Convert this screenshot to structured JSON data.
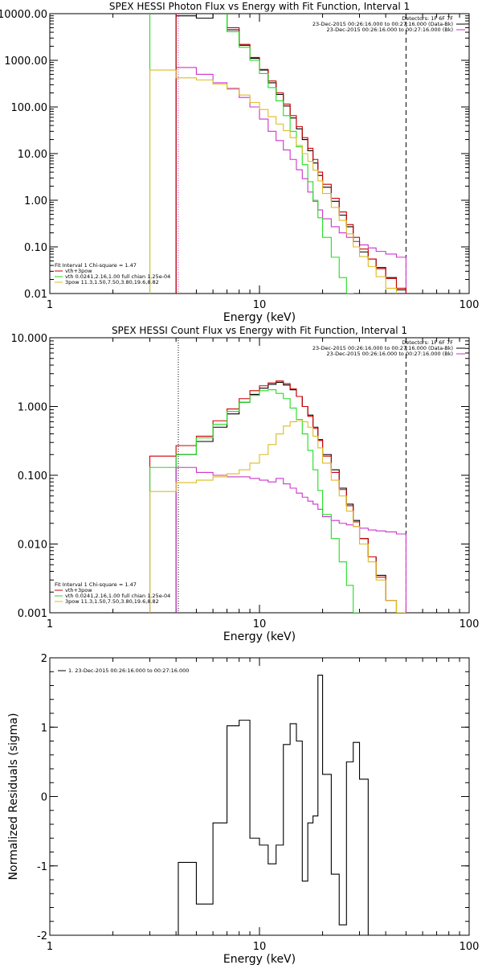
{
  "chart_data": [
    {
      "type": "line",
      "title": "SPEX HESSI Photon Flux vs Energy with Fit Function, Interval 1",
      "xlabel": "Energy (keV)",
      "ylabel": "",
      "xscale": "log",
      "yscale": "log",
      "xlim": [
        1,
        100
      ],
      "ylim": [
        0.01,
        10000
      ],
      "x_tick_labels": [
        "1",
        "10",
        "100"
      ],
      "y_tick_labels": [
        "10000.00",
        "1000.00",
        "100.00",
        "10.00",
        "1.00",
        "0.10",
        "0.01"
      ],
      "y_tick_values": [
        10000,
        1000,
        100,
        10,
        1,
        0.1,
        0.01
      ],
      "top_legend": {
        "lines": [
          "Detectors: 1F 6F 7F",
          "23-Dec-2015 00:26:16.000 to 00:27:16.000 (Data-Bk)",
          "23-Dec-2015 00:26:16.000 to 00:27:16.000 (Bk)"
        ],
        "colors": [
          "#000000",
          "#000000",
          "#cc33cc"
        ]
      },
      "bottom_legend": {
        "lines": [
          "Fit Interval 1   Chi-square = 1.47",
          "vth+3pow",
          "vth 0.0241,2.16,1.00  full chian 1.25e-04",
          "3pow  11.3,1.50,7.50,3.80,19.6,8.82"
        ],
        "colors": [
          "#000000",
          "#cc0000",
          "#22dd22",
          "#ddbb22"
        ]
      },
      "vlines": [
        {
          "x": 4.1,
          "style": "dotted",
          "color": "#cc33cc"
        },
        {
          "x": 50,
          "style": "dashed",
          "color": "#000000"
        }
      ],
      "edges": [
        3,
        4,
        5,
        6,
        7,
        8,
        9,
        10,
        11,
        12,
        13,
        14,
        15,
        16,
        17,
        18,
        19,
        20,
        22,
        24,
        26,
        28,
        30,
        33,
        36,
        40,
        45,
        50
      ],
      "series": [
        {
          "name": "Data-Bk",
          "color": "#000000",
          "start_bin": 1,
          "values": [
            9000,
            8000,
            12000,
            4500,
            2100,
            1100,
            620,
            330,
            185,
            105,
            58,
            34,
            20,
            11.5,
            6.3,
            3.4,
            1.9,
            0.95,
            0.48,
            0.27,
            0.13,
            0.078,
            0.055,
            0.036,
            0.022,
            0.012
          ]
        },
        {
          "name": "Bk",
          "color": "#cc33cc",
          "start_bin": 1,
          "values": [
            700,
            500,
            330,
            250,
            160,
            100,
            55,
            30,
            19,
            12,
            7.5,
            4.5,
            2.9,
            1.5,
            0.95,
            0.62,
            0.4,
            0.27,
            0.2,
            0.16,
            0.13,
            0.11,
            0.095,
            0.08,
            0.07,
            0.06
          ]
        },
        {
          "name": "vth+3pow",
          "color": "#cc0000",
          "start_bin": 1,
          "values": [
            12000,
            12000,
            12000,
            5000,
            2200,
            1150,
            640,
            360,
            200,
            115,
            65,
            38,
            22,
            13,
            7.5,
            4.0,
            2.2,
            1.1,
            0.56,
            0.3,
            0.16,
            0.09,
            0.055,
            0.034,
            0.021,
            0.013
          ]
        },
        {
          "name": "vth",
          "color": "#22dd22",
          "start_bin": 0,
          "values": [
            12000,
            12000,
            12000,
            12000,
            4100,
            1900,
            1000,
            520,
            260,
            135,
            65,
            30,
            14,
            5.8,
            2.5,
            1.0,
            0.42,
            0.16,
            0.06,
            0.022,
            0.01
          ]
        },
        {
          "name": "3pow",
          "color": "#ddbb22",
          "start_bin": 0,
          "values": [
            620,
            420,
            380,
            310,
            240,
            180,
            125,
            88,
            62,
            43,
            31,
            22,
            15,
            10,
            6.8,
            4.4,
            2.6,
            1.4,
            0.7,
            0.37,
            0.19,
            0.1,
            0.062,
            0.038,
            0.023,
            0.013,
            0.008
          ]
        }
      ]
    },
    {
      "type": "line",
      "title": "SPEX HESSI Count Flux vs Energy with Fit Function, Interval 1",
      "xlabel": "Energy (keV)",
      "ylabel": "",
      "xscale": "log",
      "yscale": "log",
      "xlim": [
        1,
        100
      ],
      "ylim": [
        0.001,
        10
      ],
      "x_tick_labels": [
        "1",
        "10",
        "100"
      ],
      "y_tick_labels": [
        "10.000",
        "1.000",
        "0.100",
        "0.010",
        "0.001"
      ],
      "y_tick_values": [
        10,
        1,
        0.1,
        0.01,
        0.001
      ],
      "top_legend": {
        "lines": [
          "Detectors: 1F 6F 7F",
          "23-Dec-2015 00:26:16.000 to 00:27:16.000 (Data-Bk)",
          "23-Dec-2015 00:26:16.000 to 00:27:16.000 (Bk)"
        ],
        "colors": [
          "#000000",
          "#000000",
          "#cc33cc"
        ]
      },
      "bottom_legend": {
        "lines": [
          "Fit Interval 1   Chi-square = 1.47",
          "vth+3pow",
          "vth 0.0241,2.16,1.00  full chian 1.25e-04",
          "3pow  11.3,1.50,7.50,3.80,19.6,8.82"
        ],
        "colors": [
          "#000000",
          "#cc0000",
          "#22dd22",
          "#ddbb22"
        ]
      },
      "vlines": [
        {
          "x": 4.1,
          "style": "dotted",
          "color": "#000000"
        },
        {
          "x": 50,
          "style": "dashed",
          "color": "#000000"
        }
      ],
      "edges": [
        3,
        4,
        5,
        6,
        7,
        8,
        9,
        10,
        11,
        12,
        13,
        14,
        15,
        16,
        17,
        18,
        19,
        20,
        22,
        24,
        26,
        28,
        30,
        33,
        36,
        40,
        45,
        50,
        55
      ],
      "series": [
        {
          "name": "Data-Bk",
          "color": "#000000",
          "start_bin": 1,
          "values": [
            0.2,
            0.31,
            0.5,
            0.78,
            1.15,
            1.5,
            1.85,
            2.1,
            2.25,
            2.05,
            1.75,
            1.4,
            1.0,
            0.75,
            0.5,
            0.33,
            0.2,
            0.12,
            0.065,
            0.038,
            0.022,
            0.012,
            0.0065,
            0.0035,
            0.0015,
            0.001
          ]
        },
        {
          "name": "Bk",
          "color": "#cc33cc",
          "start_bin": 1,
          "values": [
            0.13,
            0.11,
            0.1,
            0.095,
            0.095,
            0.09,
            0.085,
            0.08,
            0.09,
            0.075,
            0.065,
            0.055,
            0.048,
            0.042,
            0.038,
            0.032,
            0.025,
            0.022,
            0.02,
            0.019,
            0.018,
            0.017,
            0.016,
            0.0155,
            0.015,
            0.014
          ]
        },
        {
          "name": "vth+3pow",
          "color": "#cc0000",
          "start_bin": 0,
          "values": [
            0.19,
            0.27,
            0.37,
            0.62,
            0.92,
            1.3,
            1.7,
            2.0,
            2.2,
            2.35,
            2.15,
            1.8,
            1.4,
            1.0,
            0.72,
            0.48,
            0.32,
            0.19,
            0.11,
            0.062,
            0.036,
            0.021,
            0.012,
            0.0065,
            0.0033,
            0.0015,
            0.001
          ]
        },
        {
          "name": "vth",
          "color": "#22dd22",
          "start_bin": 0,
          "values": [
            0.13,
            0.2,
            0.35,
            0.55,
            0.85,
            1.15,
            1.45,
            1.7,
            1.75,
            1.55,
            1.3,
            0.95,
            0.65,
            0.4,
            0.23,
            0.12,
            0.06,
            0.027,
            0.012,
            0.0055,
            0.0025,
            0.001
          ]
        },
        {
          "name": "3pow",
          "color": "#ddbb22",
          "start_bin": 0,
          "values": [
            0.058,
            0.078,
            0.085,
            0.095,
            0.105,
            0.12,
            0.15,
            0.2,
            0.28,
            0.4,
            0.52,
            0.6,
            0.62,
            0.6,
            0.5,
            0.37,
            0.25,
            0.15,
            0.085,
            0.05,
            0.03,
            0.018,
            0.01,
            0.0055,
            0.003,
            0.0015,
            0.001
          ]
        }
      ]
    },
    {
      "type": "line",
      "title": "",
      "xlabel": "Energy (keV)",
      "ylabel": "Normalized Residuals (sigma)",
      "xscale": "log",
      "yscale": "linear",
      "xlim": [
        1,
        100
      ],
      "ylim": [
        -2,
        2
      ],
      "x_tick_labels": [
        "1",
        "10",
        "100"
      ],
      "y_tick_labels": [
        "2",
        "1",
        "0",
        "-1",
        "-2"
      ],
      "y_tick_values": [
        2,
        1,
        0,
        -1,
        -2
      ],
      "legend": "1. 23-Dec-2015 00:26:16.000 to 00:27:16.000",
      "edges": [
        4.1,
        5,
        6,
        7,
        8,
        9,
        10,
        11,
        12,
        13,
        14,
        15,
        16,
        17,
        18,
        19,
        20,
        22,
        24,
        26,
        28,
        30,
        33,
        36,
        40,
        45,
        50
      ],
      "series": [
        {
          "name": "1. 23-Dec-2015 00:26:16.000 to 00:27:16.000",
          "color": "#000000",
          "values": [
            -0.95,
            -1.55,
            -0.38,
            1.02,
            1.1,
            -0.6,
            -0.7,
            -0.97,
            -0.7,
            0.75,
            1.05,
            0.8,
            -1.22,
            -0.38,
            -0.28,
            1.75,
            0.32,
            -1.12,
            -1.85,
            0.5,
            0.78,
            0.25
          ]
        }
      ]
    }
  ]
}
